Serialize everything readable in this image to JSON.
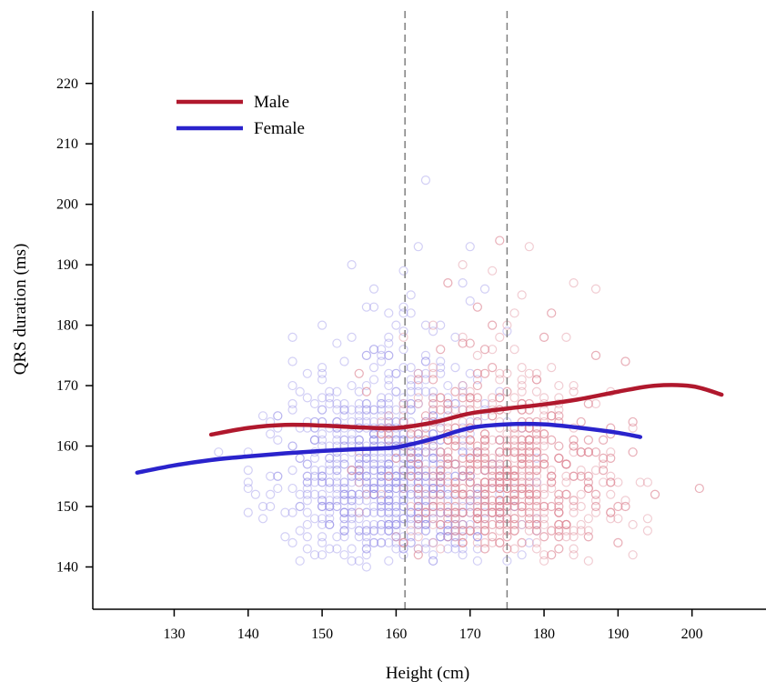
{
  "chart_data": {
    "type": "scatter",
    "title": "",
    "xlabel": "Height (cm)",
    "ylabel": "QRS duration (ms)",
    "xlim": [
      119,
      210
    ],
    "ylim": [
      133,
      232
    ],
    "xticks": [
      130,
      140,
      150,
      160,
      170,
      180,
      190,
      200
    ],
    "yticks": [
      140,
      150,
      160,
      170,
      180,
      190,
      200,
      210,
      220
    ],
    "grid": false,
    "legend_position": "top-left",
    "reference_lines_x": [
      161.2,
      175
    ],
    "series": [
      {
        "name": "Male",
        "kind": "line",
        "color": "#b0182d",
        "x": [
          135,
          140,
          145,
          150,
          155,
          160,
          165,
          170,
          175,
          180,
          185,
          190,
          195,
          200,
          204
        ],
        "y": [
          161.9,
          163.0,
          163.5,
          163.4,
          163.1,
          163.0,
          163.9,
          165.4,
          166.2,
          166.9,
          167.8,
          169.0,
          170.0,
          169.9,
          168.5
        ]
      },
      {
        "name": "Female",
        "kind": "line",
        "color": "#2a23cc",
        "x": [
          125,
          130,
          135,
          140,
          145,
          150,
          155,
          160,
          165,
          170,
          175,
          180,
          185,
          190,
          193
        ],
        "y": [
          155.6,
          156.8,
          157.7,
          158.3,
          158.8,
          159.2,
          159.5,
          159.8,
          161.2,
          163.0,
          163.6,
          163.6,
          163.0,
          162.2,
          161.5
        ]
      }
    ],
    "scatter_note_colors": {
      "Male": "#e08d9b",
      "Female": "#9b95e8"
    }
  }
}
